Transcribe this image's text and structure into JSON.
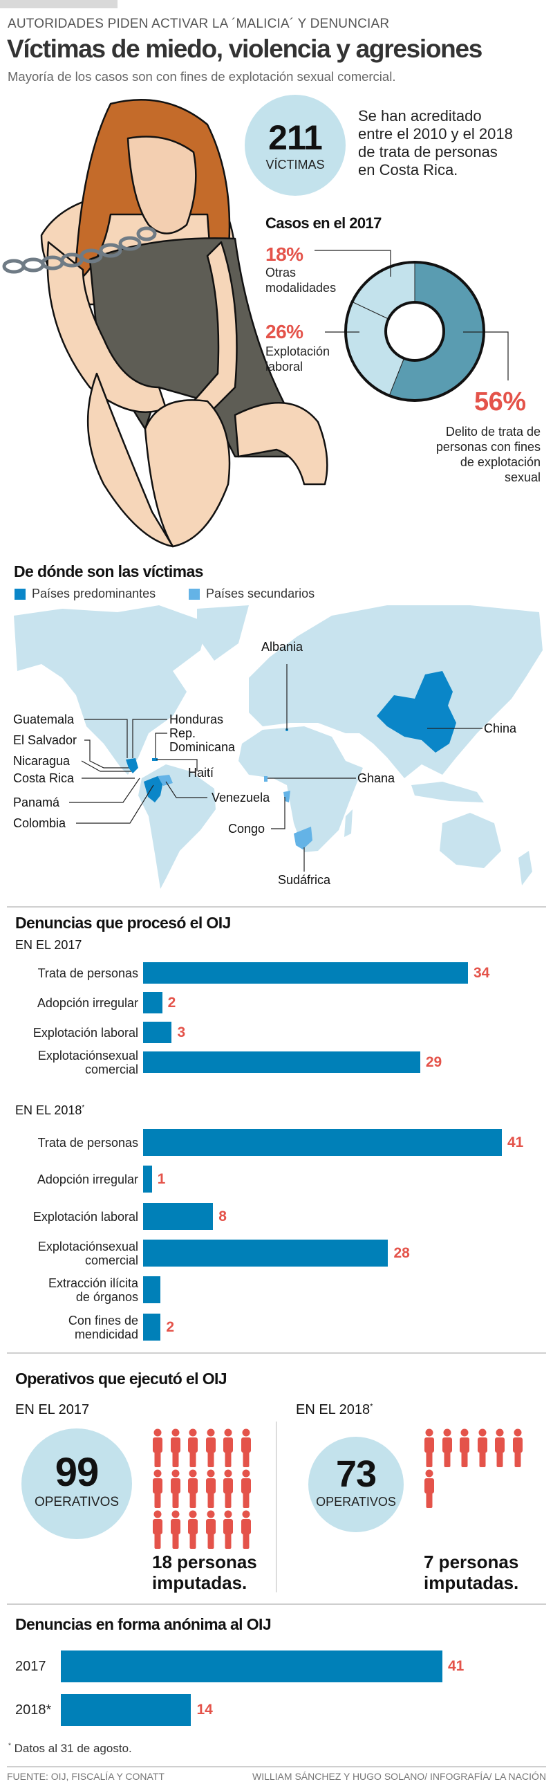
{
  "header": {
    "kicker": "AUTORIDADES PIDEN ACTIVAR LA ´MALICIA´ Y DENUNCIAR",
    "title": "Víctimas de miedo, violencia y agresiones",
    "subtitle": "Mayoría de los casos son con fines de explotación sexual comercial."
  },
  "victims": {
    "number": "211",
    "label": "VÍCTIMAS",
    "text_lines": [
      "Se han acreditado",
      "entre el  2010 y el 2018",
      "de trata de personas",
      "en Costa Rica."
    ]
  },
  "cases_2017": {
    "title": "Casos en el 2017",
    "slices": [
      {
        "pct": "56%",
        "label_lines": [
          "Delito de trata de",
          "personas con fines",
          "de explotación",
          "sexual"
        ]
      },
      {
        "pct": "26%",
        "label_lines": [
          "Explotación",
          "laboral"
        ]
      },
      {
        "pct": "18%",
        "label_lines": [
          "Otras",
          "modalidades"
        ]
      }
    ]
  },
  "map": {
    "title": "De dónde son las víctimas",
    "legend": [
      {
        "label": "Países predominantes",
        "color": "#0a86c8"
      },
      {
        "label": "Países secundarios",
        "color": "#64b3e6"
      }
    ],
    "labels": {
      "albania": "Albania",
      "guatemala": "Guatemala",
      "honduras": "Honduras",
      "rep": "Rep.",
      "dominicana": "Dominicana",
      "el_salvador": "El Salvador",
      "nicaragua": "Nicaragua",
      "haiti": "Haití",
      "costa_rica": "Costa Rica",
      "panama": "Panamá",
      "venezuela": "Venezuela",
      "colombia": "Colombia",
      "china": "China",
      "ghana": "Ghana",
      "congo": "Congo",
      "sudafrica": "Sudáfrica"
    }
  },
  "denuncias": {
    "title": "Denuncias que procesó el OIJ",
    "sub_2017": "EN EL 2017",
    "sub_2018": "EN EL 2018",
    "asterisk": "*"
  },
  "operativos": {
    "title": "Operativos que ejecutó el OIJ",
    "y2017": {
      "sub": "EN EL 2017",
      "number": "99",
      "label": "OPERATIVOS",
      "imputados": 18,
      "text_lines": [
        "18 personas",
        "imputadas."
      ]
    },
    "y2018": {
      "sub": "EN EL 2018",
      "asterisk": "*",
      "number": "73",
      "label": "OPERATIVOS",
      "imputados": 7,
      "text_lines": [
        "7 personas",
        "imputadas."
      ]
    }
  },
  "anonimas": {
    "title": "Denuncias en forma anónima al OIJ"
  },
  "footnote": {
    "asterisk": "*",
    "text": " Datos al 31 de agosto."
  },
  "footer": {
    "source": "FUENTE: OIJ, FISCALÍA Y CONATT",
    "credits": "WILLIAM SÁNCHEZ Y HUGO SOLANO/ INFOGRAFÍA/ LA NACIÓN"
  },
  "colors": {
    "bar": "#0080b8",
    "value": "#e4534a",
    "donut_dark": "#5a9cb1",
    "donut_light": "#c3e2ec"
  },
  "chart_data": [
    {
      "type": "pie",
      "title": "Casos en el 2017",
      "categories": [
        "Delito de trata de personas con fines de explotación sexual",
        "Explotación laboral",
        "Otras modalidades"
      ],
      "values": [
        56,
        26,
        18
      ]
    },
    {
      "type": "bar",
      "title": "Denuncias que procesó el OIJ — EN EL 2017",
      "categories": [
        "Trata de personas",
        "Adopción irregular",
        "Explotación laboral",
        "Explotaciónsexual\ncomercial"
      ],
      "values": [
        34,
        2,
        3,
        29
      ],
      "value_labels": [
        "34",
        "2",
        "3",
        "29"
      ]
    },
    {
      "type": "bar",
      "title": "Denuncias que procesó el OIJ — EN EL 2018*",
      "categories": [
        "Trata de personas",
        "Adopción irregular",
        "Explotación laboral",
        "Explotaciónsexual\ncomercial",
        "Extracción ilícita\nde órganos",
        "Con fines de\nmendicidad"
      ],
      "values": [
        41,
        1,
        8,
        28,
        2,
        2
      ],
      "value_labels": [
        "41",
        "1",
        "8",
        "28",
        "",
        "2"
      ]
    },
    {
      "type": "bar",
      "title": "Denuncias en forma anónima al OIJ",
      "categories": [
        "2017",
        "2018*"
      ],
      "values": [
        41,
        14
      ],
      "value_labels": [
        "41",
        "14"
      ]
    }
  ]
}
